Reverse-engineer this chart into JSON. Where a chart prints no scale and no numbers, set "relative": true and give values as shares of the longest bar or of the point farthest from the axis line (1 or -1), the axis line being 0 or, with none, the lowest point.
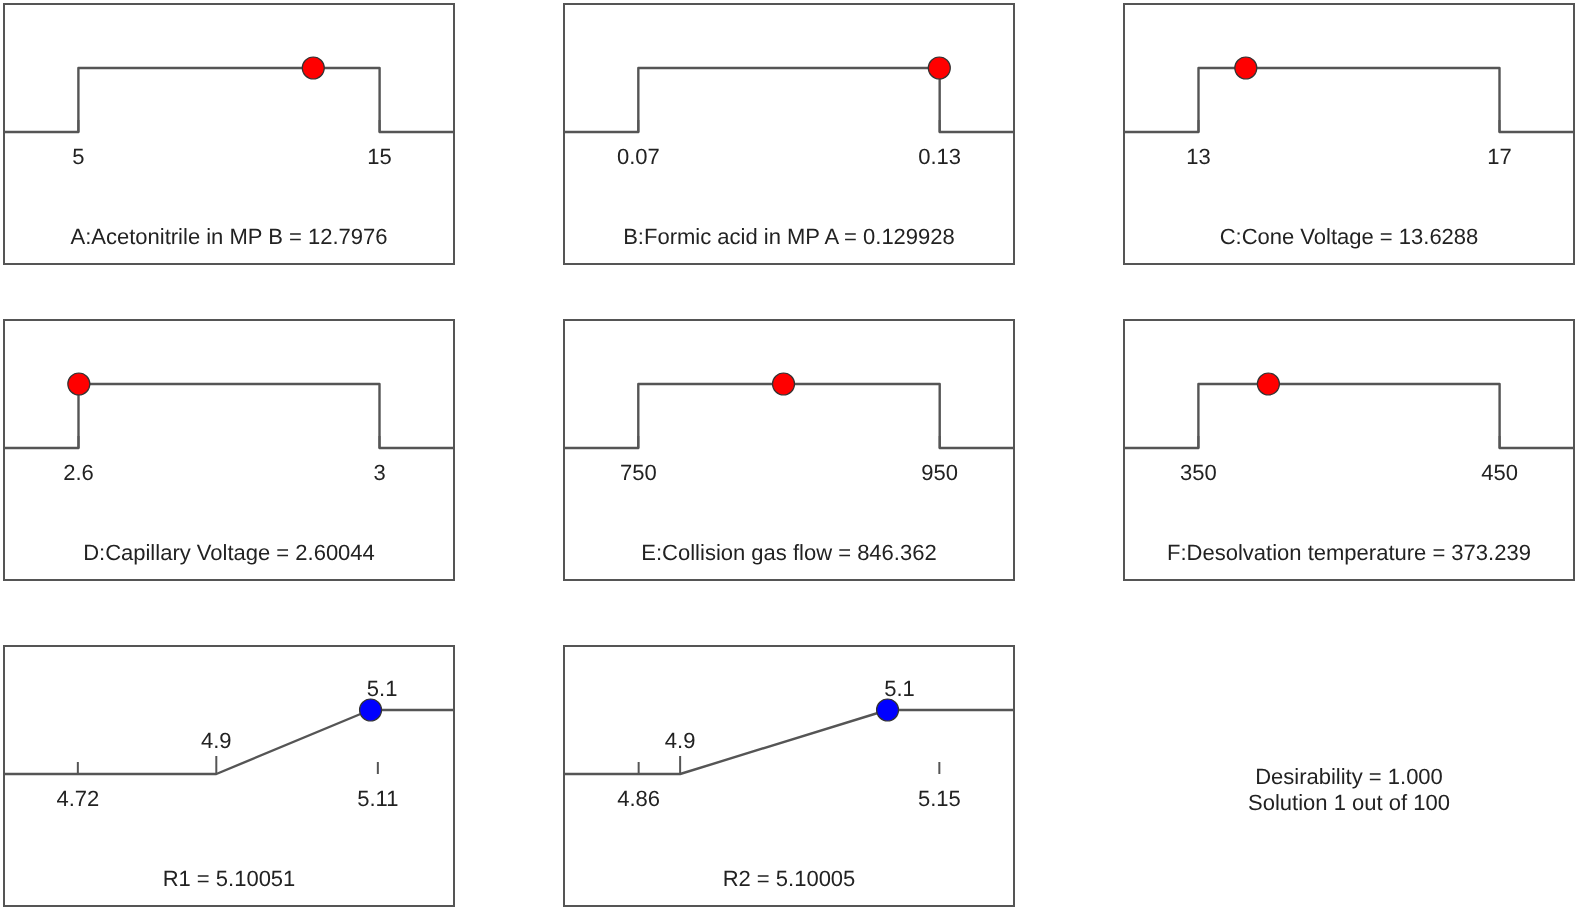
{
  "chart_data": [
    {
      "type": "line",
      "xlabel": "A:Acetonitrile in MP B = 12.7976",
      "relative": true,
      "xlim": [
        2.53,
        17.47
      ],
      "xticks": [
        5,
        15
      ],
      "series": [
        {
          "type": "line",
          "color": "#555555",
          "marker": "none",
          "x": [
            2.53,
            5,
            5,
            15,
            15,
            17.47
          ],
          "values": [
            0,
            0,
            1,
            1,
            0,
            0
          ]
        },
        {
          "type": "scatter",
          "color": "#ff0000",
          "marker": "circle",
          "x": [
            12.7976
          ],
          "values": [
            1
          ]
        }
      ]
    },
    {
      "type": "line",
      "xlabel": "B:Formic acid in MP A = 0.129928",
      "relative": true,
      "xlim": [
        0.0552,
        0.1448
      ],
      "xticks": [
        0.07,
        0.13
      ],
      "series": [
        {
          "type": "line",
          "color": "#555555",
          "marker": "none",
          "x": [
            0.0552,
            0.07,
            0.07,
            0.13,
            0.13,
            0.1448
          ],
          "values": [
            0,
            0,
            1,
            1,
            0,
            0
          ]
        },
        {
          "type": "scatter",
          "color": "#ff0000",
          "marker": "circle",
          "x": [
            0.129928
          ],
          "values": [
            1
          ]
        }
      ]
    },
    {
      "type": "line",
      "xlabel": "C:Cone Voltage = 13.6288",
      "relative": true,
      "xlim": [
        12.01,
        17.99
      ],
      "xticks": [
        13,
        17
      ],
      "series": [
        {
          "type": "line",
          "color": "#555555",
          "marker": "none",
          "x": [
            12.01,
            13,
            13,
            17,
            17,
            17.99
          ],
          "values": [
            0,
            0,
            1,
            1,
            0,
            0
          ]
        },
        {
          "type": "scatter",
          "color": "#ff0000",
          "marker": "circle",
          "x": [
            13.6288
          ],
          "values": [
            1
          ]
        }
      ]
    },
    {
      "type": "line",
      "xlabel": "D:Capillary Voltage = 2.60044",
      "relative": true,
      "xlim": [
        2.501,
        3.099
      ],
      "xticks": [
        2.6,
        3
      ],
      "series": [
        {
          "type": "line",
          "color": "#555555",
          "marker": "none",
          "x": [
            2.501,
            2.6,
            2.6,
            3,
            3,
            3.099
          ],
          "values": [
            0,
            0,
            1,
            1,
            0,
            0
          ]
        },
        {
          "type": "scatter",
          "color": "#ff0000",
          "marker": "circle",
          "x": [
            2.60044
          ],
          "values": [
            1
          ]
        }
      ]
    },
    {
      "type": "line",
      "xlabel": "E:Collision gas flow = 846.362",
      "relative": true,
      "xlim": [
        700.7,
        999.3
      ],
      "xticks": [
        750,
        950
      ],
      "series": [
        {
          "type": "line",
          "color": "#555555",
          "marker": "none",
          "x": [
            700.7,
            750,
            750,
            950,
            950,
            999.3
          ],
          "values": [
            0,
            0,
            1,
            1,
            0,
            0
          ]
        },
        {
          "type": "scatter",
          "color": "#ff0000",
          "marker": "circle",
          "x": [
            846.362
          ],
          "values": [
            1
          ]
        }
      ]
    },
    {
      "type": "line",
      "xlabel": "F:Desolvation temperature = 373.239",
      "relative": true,
      "xlim": [
        325.3,
        474.7
      ],
      "xticks": [
        350,
        450
      ],
      "series": [
        {
          "type": "line",
          "color": "#555555",
          "marker": "none",
          "x": [
            325.3,
            350,
            350,
            450,
            450,
            474.7
          ],
          "values": [
            0,
            0,
            1,
            1,
            0,
            0
          ]
        },
        {
          "type": "scatter",
          "color": "#ff0000",
          "marker": "circle",
          "x": [
            373.239
          ],
          "values": [
            1
          ]
        }
      ]
    },
    {
      "type": "line",
      "xlabel": "R1 = 5.10051",
      "relative": true,
      "xlim": [
        4.624,
        5.209
      ],
      "xticks": [
        4.72,
        5.11
      ],
      "annotations": [
        "4.9",
        "5.1"
      ],
      "series": [
        {
          "type": "line",
          "color": "#555555",
          "marker": "none",
          "x": [
            4.624,
            4.9,
            5.1,
            5.209
          ],
          "values": [
            0,
            0,
            1,
            1
          ]
        },
        {
          "type": "scatter",
          "color": "#0000ff",
          "marker": "circle",
          "x": [
            5.10051
          ],
          "values": [
            1
          ]
        }
      ]
    },
    {
      "type": "line",
      "xlabel": "R2 = 5.10005",
      "relative": true,
      "xlim": [
        4.788,
        5.222
      ],
      "xticks": [
        4.86,
        5.15
      ],
      "annotations": [
        "4.9",
        "5.1"
      ],
      "series": [
        {
          "type": "line",
          "color": "#555555",
          "marker": "none",
          "x": [
            4.788,
            4.9,
            5.1,
            5.222
          ],
          "values": [
            0,
            0,
            1,
            1
          ]
        },
        {
          "type": "scatter",
          "color": "#0000ff",
          "marker": "circle",
          "x": [
            5.10005
          ],
          "values": [
            1
          ]
        }
      ]
    },
    {
      "type": "other",
      "annotations": [
        "Desirability = 1.000",
        "Solution 1 out of 100"
      ]
    }
  ]
}
